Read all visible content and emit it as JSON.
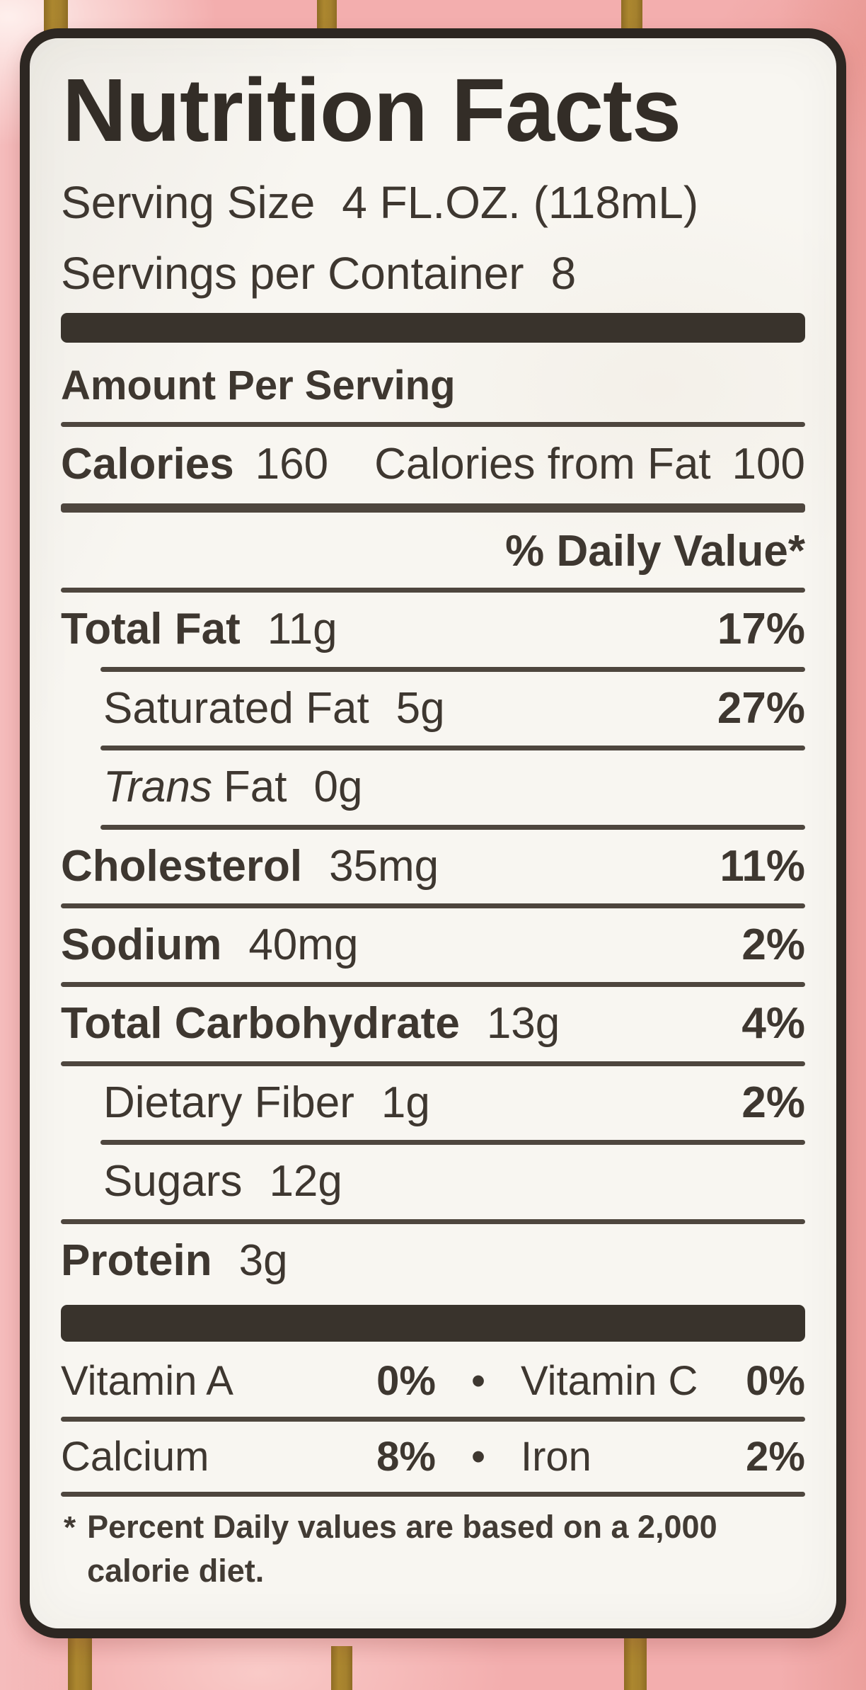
{
  "colors": {
    "pink_background": "#f3aeae",
    "gold_stripe": "#a5812e",
    "label_background": "#f8f6f1",
    "label_border": "#2d2722",
    "ink": "#3e3730"
  },
  "label": {
    "title": "Nutrition Facts",
    "serving_size": {
      "label": "Serving Size",
      "value": "4 FL.OZ. (118mL)"
    },
    "servings_per_container": {
      "label": "Servings per Container",
      "value": "8"
    },
    "amount_per_serving": "Amount Per Serving",
    "calories": {
      "label": "Calories",
      "value": "160"
    },
    "calories_from_fat": {
      "label": "Calories from Fat",
      "value": "100"
    },
    "daily_value_header": "% Daily Value*",
    "nutrients": [
      {
        "name": "Total Fat",
        "amount": "11g",
        "dv": "17%"
      },
      {
        "name": "Saturated Fat",
        "amount": "5g",
        "dv": "27%"
      },
      {
        "name_prefix": "Trans",
        "name": "Fat",
        "amount": "0g",
        "dv": ""
      },
      {
        "name": "Cholesterol",
        "amount": "35mg",
        "dv": "11%"
      },
      {
        "name": "Sodium",
        "amount": "40mg",
        "dv": "2%"
      },
      {
        "name": "Total Carbohydrate",
        "amount": "13g",
        "dv": "4%"
      },
      {
        "name": "Dietary Fiber",
        "amount": "1g",
        "dv": "2%"
      },
      {
        "name": "Sugars",
        "amount": "12g",
        "dv": ""
      },
      {
        "name": "Protein",
        "amount": "3g",
        "dv": ""
      }
    ],
    "vitamins": [
      {
        "left_name": "Vitamin A",
        "left_value": "0%",
        "bullet": "•",
        "right_name": "Vitamin C",
        "right_value": "0%"
      },
      {
        "left_name": "Calcium",
        "left_value": "8%",
        "bullet": "•",
        "right_name": "Iron",
        "right_value": "2%"
      }
    ],
    "footnote": {
      "star": "*",
      "line1": "Percent Daily values are based on a 2,000",
      "line2": "calorie diet."
    }
  }
}
